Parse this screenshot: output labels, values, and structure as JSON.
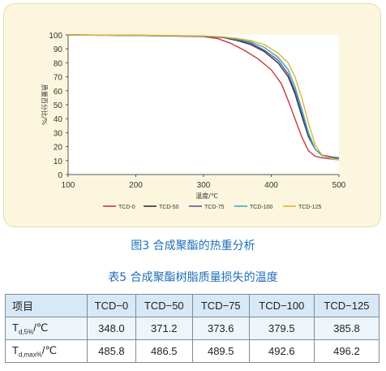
{
  "chart_data": {
    "type": "line",
    "xlabel": "温度/℃",
    "ylabel": "质量百分比/%",
    "xlim": [
      100,
      500
    ],
    "ylim": [
      0,
      100
    ],
    "x_ticks": [
      "100",
      "200",
      "300",
      "400",
      "500"
    ],
    "y_ticks": [
      "0",
      "10",
      "20",
      "30",
      "40",
      "50",
      "60",
      "70",
      "80",
      "90",
      "100"
    ],
    "grid": false,
    "legend_position": "bottom",
    "series": [
      {
        "name": "TCD-0",
        "color": "#c8383a",
        "x": [
          100,
          200,
          300,
          320,
          340,
          360,
          380,
          400,
          415,
          425,
          435,
          445,
          455,
          465,
          475,
          490,
          500
        ],
        "y": [
          100,
          99.6,
          98.8,
          97.5,
          94,
          89,
          83,
          75,
          65,
          53,
          40,
          27,
          17,
          13,
          12,
          11,
          10.5
        ]
      },
      {
        "name": "TCD-50",
        "color": "#333333",
        "x": [
          100,
          200,
          300,
          330,
          350,
          370,
          390,
          410,
          425,
          435,
          445,
          455,
          465,
          475,
          490,
          500
        ],
        "y": [
          100,
          99.6,
          99,
          98,
          96,
          93,
          88,
          80,
          70,
          58,
          42,
          27,
          18,
          14,
          12.5,
          12
        ]
      },
      {
        "name": "TCD-75",
        "color": "#6650a4",
        "x": [
          100,
          200,
          300,
          330,
          350,
          370,
          390,
          410,
          425,
          435,
          445,
          455,
          465,
          475,
          490,
          500
        ],
        "y": [
          100,
          99.7,
          99,
          98.2,
          96.5,
          94,
          89,
          82,
          72,
          60,
          44,
          28,
          18,
          14,
          12.5,
          12
        ]
      },
      {
        "name": "TCD-100",
        "color": "#2fb3b0",
        "x": [
          100,
          200,
          300,
          330,
          350,
          370,
          390,
          410,
          425,
          435,
          445,
          455,
          465,
          475,
          490,
          500
        ],
        "y": [
          100,
          99.7,
          99.1,
          98.4,
          97,
          95,
          91,
          84,
          75,
          63,
          47,
          30,
          18,
          13.5,
          11.5,
          11
        ]
      },
      {
        "name": "TCD-125",
        "color": "#e5b32f",
        "x": [
          100,
          200,
          300,
          330,
          350,
          370,
          390,
          410,
          425,
          435,
          445,
          455,
          465,
          475,
          490,
          500
        ],
        "y": [
          100,
          99.8,
          99.3,
          98.6,
          97.5,
          96,
          93,
          87,
          80,
          70,
          55,
          37,
          21,
          14,
          11,
          10.5
        ]
      }
    ]
  },
  "figure_caption": "图3 合成聚酯的热重分析",
  "table": {
    "caption": "表5 合成聚酯树脂质量损失的温度",
    "header": [
      "项目",
      "TCD−0",
      "TCD−50",
      "TCD−75",
      "TCD−100",
      "TCD−125"
    ],
    "rows": [
      {
        "label_main": "T",
        "label_sub": "d,5%",
        "label_unit": "/℃",
        "values": [
          "348.0",
          "371.2",
          "373.6",
          "379.5",
          "385.8"
        ]
      },
      {
        "label_main": "T",
        "label_sub": "d,max%",
        "label_unit": "/℃",
        "values": [
          "485.8",
          "486.5",
          "489.5",
          "492.6",
          "496.2"
        ]
      }
    ]
  }
}
